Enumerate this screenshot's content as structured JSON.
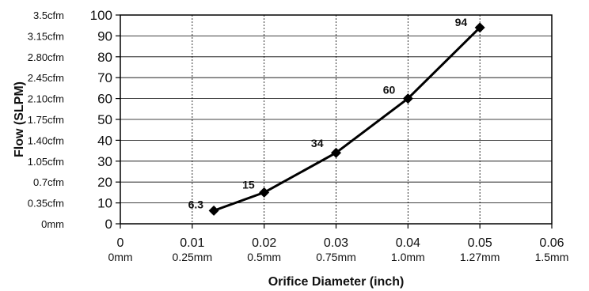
{
  "chart_data": {
    "type": "line",
    "title": "",
    "xlabel": "Orifice Diameter (inch)",
    "ylabel": "Flow (SLPM)",
    "xlim": [
      0,
      0.06
    ],
    "ylim": [
      0,
      100
    ],
    "x_ticks": [
      {
        "value": 0,
        "label": "0",
        "sublabel": "0mm"
      },
      {
        "value": 0.01,
        "label": "0.01",
        "sublabel": "0.25mm"
      },
      {
        "value": 0.02,
        "label": "0.02",
        "sublabel": "0.5mm"
      },
      {
        "value": 0.03,
        "label": "0.03",
        "sublabel": "0.75mm"
      },
      {
        "value": 0.04,
        "label": "0.04",
        "sublabel": "1.0mm"
      },
      {
        "value": 0.05,
        "label": "0.05",
        "sublabel": "1.27mm"
      },
      {
        "value": 0.06,
        "label": "0.06",
        "sublabel": "1.5mm"
      }
    ],
    "y_ticks": [
      {
        "value": 0,
        "label": "0",
        "secondary": "0mm"
      },
      {
        "value": 10,
        "label": "10",
        "secondary": "0.35cfm"
      },
      {
        "value": 20,
        "label": "20",
        "secondary": "0.7cfm"
      },
      {
        "value": 30,
        "label": "30",
        "secondary": "1.05cfm"
      },
      {
        "value": 40,
        "label": "40",
        "secondary": "1.40cfm"
      },
      {
        "value": 50,
        "label": "50",
        "secondary": "1.75cfm"
      },
      {
        "value": 60,
        "label": "60",
        "secondary": "2.10cfm"
      },
      {
        "value": 70,
        "label": "70",
        "secondary": "2.45cfm"
      },
      {
        "value": 80,
        "label": "80",
        "secondary": "2.80cfm"
      },
      {
        "value": 90,
        "label": "90",
        "secondary": "3.15cfm"
      },
      {
        "value": 100,
        "label": "100",
        "secondary": "3.5cfm"
      }
    ],
    "grid": true,
    "series": [
      {
        "color": "#000000",
        "marker": "diamond",
        "points": [
          {
            "x": 0.013,
            "y": 6.3,
            "label": "6.3"
          },
          {
            "x": 0.02,
            "y": 15,
            "label": "15"
          },
          {
            "x": 0.03,
            "y": 34,
            "label": "34"
          },
          {
            "x": 0.04,
            "y": 60,
            "label": "60"
          },
          {
            "x": 0.05,
            "y": 94,
            "label": "94"
          }
        ]
      }
    ]
  }
}
